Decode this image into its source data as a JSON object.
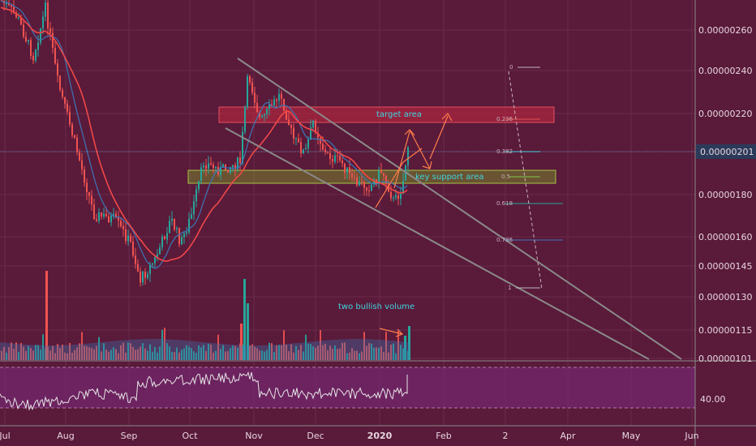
{
  "chart_data": {
    "type": "line",
    "price_axis": {
      "ticks": [
        "0.00000260",
        "0.00000240",
        "0.00000220",
        "0.00000180",
        "0.00000160",
        "0.00000145",
        "0.00000130",
        "0.00000115",
        "0.00000101"
      ],
      "current_price_label": "0.00000201"
    },
    "rsi_axis": {
      "ticks": [
        "40.00"
      ]
    },
    "x_axis": {
      "ticks": [
        "Jul",
        "Aug",
        "Sep",
        "Oct",
        "Nov",
        "Dec",
        "2020",
        "Feb",
        "2",
        "Apr",
        "May",
        "Jun"
      ]
    },
    "annotations": [
      {
        "text": "target area"
      },
      {
        "text": "key support area"
      },
      {
        "text": "two bullish volume"
      }
    ],
    "fib_levels": [
      "0",
      "0.236",
      "0.382",
      "0.5",
      "0.618",
      "0.786",
      "1"
    ],
    "colors": {
      "background": "#5a1a3a",
      "bull": "#26a69a",
      "bear": "#ef5350",
      "ma_red": "#f04848",
      "ma_blue": "#3b78b8",
      "trend_lines": "#8a8a8a",
      "target_zone": "#c62a40",
      "support_zone": "#7c9a2a",
      "arrow": "#ff7f4a",
      "annotation_text": "#3fd5e0",
      "rsi_band": "#7a2a7a",
      "rsi_line": "#e6e6e6",
      "current_price_bg": "#2c3a5a"
    }
  }
}
